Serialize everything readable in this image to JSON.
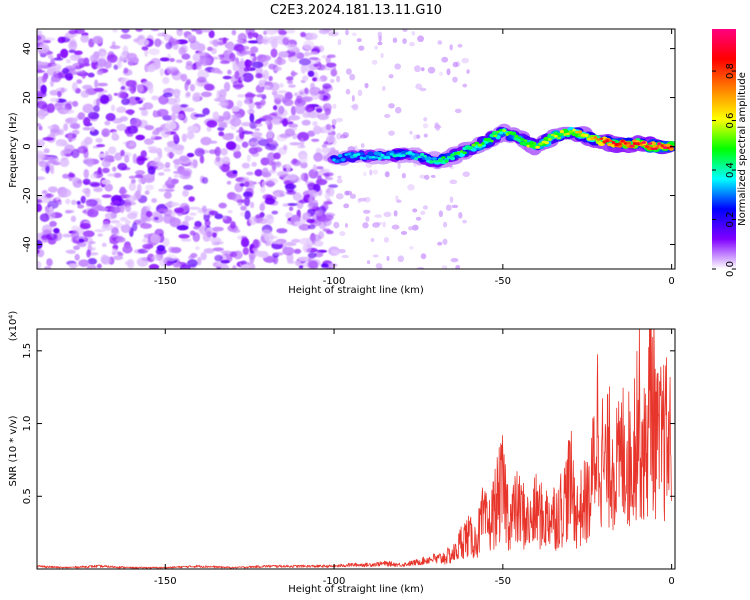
{
  "title": "C2E3.2024.181.13.11.G10",
  "chart_data": [
    {
      "type": "heatmap",
      "xlabel": "Height of straight line (km)",
      "ylabel": "Frequency (Hz)",
      "xlim": [
        -188,
        1
      ],
      "ylim": [
        -50,
        48
      ],
      "x_ticks": [
        -150,
        -100,
        -50,
        0
      ],
      "x_tick_labels": [
        "-150",
        "-100",
        "-50",
        "0"
      ],
      "y_ticks": [
        40,
        20,
        0,
        -20,
        -40
      ],
      "y_tick_labels": [
        "40",
        "20",
        "0",
        "-20",
        "-40"
      ],
      "colorbar": {
        "label": "Normalized spectral amplitude",
        "range": [
          0,
          0.97
        ],
        "ticks": [
          0.0,
          0.2,
          0.4,
          0.6,
          0.8
        ],
        "tick_labels": [
          "0.0",
          "0.2",
          "0.4",
          "0.6",
          "0.8"
        ],
        "colormap": "rainbow",
        "stops": [
          "#ffffff",
          "#8000ff",
          "#0000ff",
          "#00ffff",
          "#00ff00",
          "#ffff00",
          "#ff8000",
          "#ff0000",
          "#ff0080"
        ]
      },
      "ridge": {
        "description": "Narrow-band signal near 0 Hz from about -100 km to 0 km, rising to about +8 Hz near -50 km",
        "x": [
          -100,
          -95,
          -90,
          -85,
          -80,
          -75,
          -70,
          -65,
          -60,
          -55,
          -50,
          -45,
          -40,
          -35,
          -30,
          -25,
          -20,
          -15,
          -10,
          -5,
          0
        ],
        "y": [
          -5,
          -4,
          -4,
          -4,
          -3,
          -4,
          -6,
          -4,
          -1,
          2,
          6,
          3,
          0,
          4,
          6,
          4,
          2,
          1,
          1,
          0,
          0
        ],
        "peak_amplitude": [
          0.35,
          0.38,
          0.35,
          0.4,
          0.4,
          0.38,
          0.45,
          0.5,
          0.5,
          0.55,
          0.55,
          0.55,
          0.6,
          0.62,
          0.62,
          0.7,
          0.85,
          0.9,
          0.92,
          0.95,
          0.93
        ]
      },
      "noise": {
        "description": "Diffuse low-amplitude noise over all frequencies for heights below -100 km",
        "x_range": [
          -188,
          -100
        ],
        "amplitude_range": [
          0.0,
          0.15
        ]
      }
    },
    {
      "type": "line",
      "xlabel": "Height of straight line (km)",
      "ylabel": "SNR (10 * v/v)",
      "y_scale_note": "(x10⁴)",
      "xlim": [
        -188,
        1
      ],
      "ylim": [
        0,
        1.65
      ],
      "x_ticks": [
        -150,
        -100,
        -50,
        0
      ],
      "x_tick_labels": [
        "-150",
        "-100",
        "-50",
        "0"
      ],
      "y_ticks": [
        0.5,
        1.0,
        1.5
      ],
      "y_tick_labels": [
        "0.5",
        "1.0",
        "1.5"
      ],
      "color": "#e8352b",
      "series": [
        {
          "x": [
            -188,
            -180,
            -170,
            -160,
            -150,
            -140,
            -130,
            -120,
            -110,
            -100,
            -95,
            -90,
            -85,
            -80,
            -75,
            -70,
            -66,
            -64,
            -62,
            -60,
            -58,
            -56,
            -54,
            -52,
            -50,
            -48,
            -46,
            -44,
            -42,
            -40,
            -38,
            -36,
            -34,
            -32,
            -30,
            -28,
            -26,
            -24,
            -22,
            -20,
            -18,
            -16,
            -14,
            -12,
            -10,
            -8,
            -6,
            -4,
            -2,
            0
          ],
          "y": [
            0.02,
            0.01,
            0.02,
            0.01,
            0.01,
            0.02,
            0.01,
            0.02,
            0.02,
            0.02,
            0.03,
            0.03,
            0.04,
            0.03,
            0.05,
            0.08,
            0.12,
            0.15,
            0.28,
            0.3,
            0.25,
            0.45,
            0.4,
            0.6,
            0.75,
            0.45,
            0.55,
            0.5,
            0.4,
            0.55,
            0.45,
            0.5,
            0.5,
            0.6,
            0.8,
            0.5,
            0.6,
            0.65,
            1.35,
            0.9,
            1.05,
            0.9,
            1.1,
            0.95,
            1.45,
            1.0,
            1.65,
            1.1,
            1.2,
            1.1
          ]
        }
      ]
    }
  ]
}
